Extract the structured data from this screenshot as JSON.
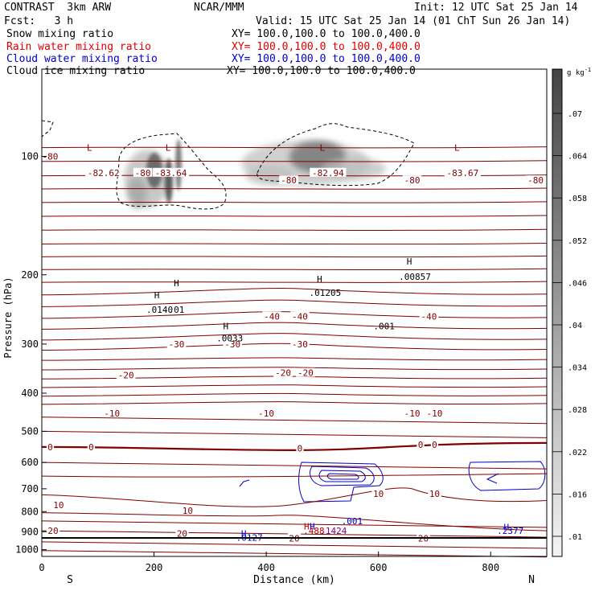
{
  "header": {
    "title": "CONTRAST  3km ARW",
    "org": "NCAR/MMM",
    "init": "Init: 12 UTC Sat 25 Jan 14",
    "fcst": "Fcst:   3 h",
    "valid": "Valid: 15 UTC Sat 25 Jan 14 (01 ChT Sun 26 Jan 14)"
  },
  "fields": [
    {
      "name": "Snow mixing ratio",
      "xy": "XY= 100.0,100.0 to 100.0,400.0",
      "color": "#000000"
    },
    {
      "name": "Rain water mixing ratio",
      "xy": "XY= 100.0,100.0 to 100.0,400.0",
      "color": "#e00000"
    },
    {
      "name": "Cloud water mixing ratio",
      "xy": "XY= 100.0,100.0 to 100.0,400.0",
      "color": "#0000c8"
    },
    {
      "name": "Cloud ice mixing ratio",
      "xy": "XY= 100.0,100.0 to 100.0,400.0",
      "color": "#000000"
    }
  ],
  "colorbar": {
    "unit": "g kg",
    "unit_exp": "-1",
    "ticks": [
      ".07",
      ".064",
      ".058",
      ".052",
      ".046",
      ".04",
      ".034",
      ".028",
      ".022",
      ".016",
      ".01"
    ]
  },
  "axes": {
    "ylabel": "Pressure (hPa)",
    "xlabel": "Distance (km)",
    "south_label": "S",
    "north_label": "N",
    "xticks": [
      "0",
      "200",
      "400",
      "600",
      "800"
    ],
    "yticks": [
      "100",
      "200",
      "300",
      "400",
      "500",
      "600",
      "700",
      "800",
      "900",
      "1000"
    ]
  },
  "chart_data": {
    "type": "contour cross-section",
    "x_range_km": [
      0,
      900
    ],
    "y_range_hpa": [
      60,
      1040
    ],
    "y_scale": "log",
    "temperature_contour_labels": [
      {
        "text": "-80",
        "x": 15,
        "p": 100
      },
      {
        "text": "-82.62",
        "x": 110,
        "p": 110
      },
      {
        "text": "-80",
        "x": 180,
        "p": 110
      },
      {
        "text": "-83.64",
        "x": 230,
        "p": 110
      },
      {
        "text": "-80",
        "x": 440,
        "p": 115
      },
      {
        "text": "-82.94",
        "x": 510,
        "p": 110
      },
      {
        "text": "-80",
        "x": 660,
        "p": 115
      },
      {
        "text": "-83.67",
        "x": 750,
        "p": 110
      },
      {
        "text": "-80",
        "x": 880,
        "p": 115
      },
      {
        "text": "-40",
        "x": 410,
        "p": 255
      },
      {
        "text": "-40",
        "x": 460,
        "p": 255
      },
      {
        "text": "-40",
        "x": 690,
        "p": 255
      },
      {
        "text": "-30",
        "x": 240,
        "p": 300
      },
      {
        "text": "-30",
        "x": 340,
        "p": 300
      },
      {
        "text": "-30",
        "x": 460,
        "p": 300
      },
      {
        "text": "-20",
        "x": 150,
        "p": 360
      },
      {
        "text": "-20",
        "x": 430,
        "p": 355
      },
      {
        "text": "-20",
        "x": 470,
        "p": 355
      },
      {
        "text": "-10",
        "x": 125,
        "p": 450
      },
      {
        "text": "-10",
        "x": 400,
        "p": 450
      },
      {
        "text": "-10",
        "x": 660,
        "p": 450
      },
      {
        "text": "-10",
        "x": 700,
        "p": 450
      },
      {
        "text": "0",
        "x": 15,
        "p": 548
      },
      {
        "text": "0",
        "x": 88,
        "p": 548
      },
      {
        "text": "0",
        "x": 460,
        "p": 552
      },
      {
        "text": "0",
        "x": 675,
        "p": 540
      },
      {
        "text": "0",
        "x": 700,
        "p": 540
      },
      {
        "text": "10",
        "x": 30,
        "p": 770
      },
      {
        "text": "10",
        "x": 260,
        "p": 795
      },
      {
        "text": "10",
        "x": 600,
        "p": 720
      },
      {
        "text": "10",
        "x": 700,
        "p": 720
      },
      {
        "text": "20",
        "x": 20,
        "p": 895
      },
      {
        "text": "20",
        "x": 250,
        "p": 910
      },
      {
        "text": "20",
        "x": 450,
        "p": 935
      },
      {
        "text": "20",
        "x": 680,
        "p": 935
      }
    ],
    "extrema_labels": [
      {
        "text": "L",
        "x": 85,
        "p": 95,
        "color": "#800000"
      },
      {
        "text": "L",
        "x": 225,
        "p": 95,
        "color": "#800000"
      },
      {
        "text": "L",
        "x": 500,
        "p": 95,
        "color": "#800000"
      },
      {
        "text": "L",
        "x": 740,
        "p": 95,
        "color": "#800000"
      },
      {
        "text": "H",
        "x": 205,
        "p": 225,
        "color": "#000000"
      },
      {
        "text": "H",
        "x": 240,
        "p": 210,
        "color": "#000000"
      },
      {
        "text": ".0140",
        "x": 210,
        "p": 245,
        "color": "#000000"
      },
      {
        "text": ".01",
        "x": 240,
        "p": 245,
        "color": "#000000"
      },
      {
        "text": "H",
        "x": 328,
        "p": 270,
        "color": "#000000"
      },
      {
        "text": ".0033",
        "x": 335,
        "p": 290,
        "color": "#000000"
      },
      {
        "text": "H",
        "x": 495,
        "p": 205,
        "color": "#000000"
      },
      {
        "text": ".01205",
        "x": 505,
        "p": 222,
        "color": "#000000"
      },
      {
        "text": "H",
        "x": 655,
        "p": 185,
        "color": "#000000"
      },
      {
        "text": ".00857",
        "x": 665,
        "p": 202,
        "color": "#000000"
      },
      {
        "text": ".001",
        "x": 610,
        "p": 270,
        "color": "#000000"
      },
      {
        "text": "H",
        "x": 472,
        "p": 872,
        "color": "#c00000"
      },
      {
        "text": "H",
        "x": 482,
        "p": 872,
        "color": "#0000c8"
      },
      {
        "text": ".488",
        "x": 485,
        "p": 895,
        "color": "#c00000"
      },
      {
        "text": ".1424",
        "x": 520,
        "p": 895,
        "color": "#800080"
      },
      {
        "text": ".001",
        "x": 553,
        "p": 845,
        "color": "#0000c8"
      },
      {
        "text": "H",
        "x": 360,
        "p": 910,
        "color": "#0000c8"
      },
      {
        "text": ".0127",
        "x": 370,
        "p": 930,
        "color": "#0000c8"
      },
      {
        "text": "H",
        "x": 828,
        "p": 875,
        "color": "#0000c8"
      },
      {
        "text": ".2377",
        "x": 835,
        "p": 895,
        "color": "#0000c8"
      }
    ]
  }
}
